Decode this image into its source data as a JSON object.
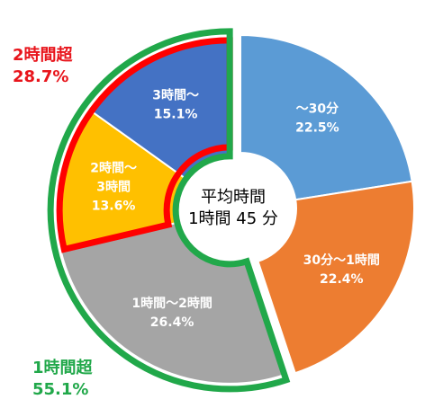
{
  "chart_data": {
    "type": "pie",
    "style": "donut",
    "center_text": [
      "平均時間",
      "1時間 45 分"
    ],
    "slices": [
      {
        "label": "〜30分",
        "label_lines": [
          "〜30分"
        ],
        "value": 22.5,
        "value_text": "22.5%",
        "color": "#5b9bd5"
      },
      {
        "label": "30分〜1時間",
        "label_lines": [
          "30分〜1時間"
        ],
        "value": 22.4,
        "value_text": "22.4%",
        "color": "#ed7d31"
      },
      {
        "label": "1時間〜2時間",
        "label_lines": [
          "1時間〜2時間"
        ],
        "value": 26.4,
        "value_text": "26.4%",
        "color": "#a5a5a5"
      },
      {
        "label": "2時間〜3時間",
        "label_lines": [
          "2時間〜",
          "3時間"
        ],
        "value": 13.6,
        "value_text": "13.6%",
        "color": "#ffc000"
      },
      {
        "label": "3時間〜",
        "label_lines": [
          "3時間〜"
        ],
        "value": 15.1,
        "value_text": "15.1%",
        "color": "#4472c4"
      }
    ],
    "groups": [
      {
        "name": "2時間超",
        "value_text": "28.7%",
        "color": "#ff0000",
        "slice_indices": [
          3,
          4
        ]
      },
      {
        "name": "1時間超",
        "value_text": "55.1%",
        "color": "#21a84a",
        "slice_indices": [
          2,
          3,
          4
        ]
      }
    ]
  }
}
